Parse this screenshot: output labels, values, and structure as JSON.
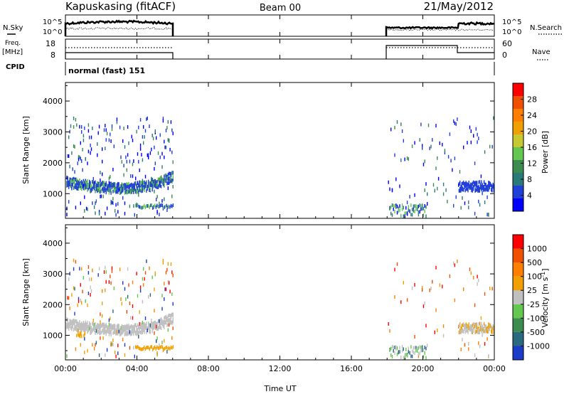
{
  "header": {
    "station": "Kapuskasing (fitACF)",
    "beam": "Beam 00",
    "date": "21/May/2012"
  },
  "labels": {
    "nsky": "N.Sky",
    "freq": "Freq.",
    "freq_unit": "[MHz]",
    "cpid": "CPID",
    "nsearch": "N.Search",
    "nave": "Nave",
    "cpid_value": "normal (fast) 151"
  },
  "colors": {
    "power_scale": [
      "#0000ff",
      "#2040d8",
      "#2a7a7a",
      "#3c8c50",
      "#64c850",
      "#c8c832",
      "#f0a000",
      "#ff8000",
      "#f05000",
      "#ff0000"
    ],
    "velocity_scale": [
      "#1a3cc8",
      "#2a6a80",
      "#3c8c50",
      "#64c850",
      "#c0c0c0",
      "#f0a000",
      "#ff8000",
      "#f05000",
      "#ff0000"
    ],
    "gray_band": "#c0c0c0"
  },
  "chart_data": [
    {
      "type": "line",
      "name_label": "N.Sky / N.Search",
      "ylabel_left": [
        "10^5",
        "10^0"
      ],
      "ylabel_right": [
        "10^5",
        "10^0"
      ],
      "active_periods": [
        [
          "00:00",
          "06:00"
        ],
        [
          "18:00",
          "24:00"
        ]
      ]
    },
    {
      "type": "line",
      "name_label": "Freq. / Nave",
      "ylabel_left": [
        "18",
        "8"
      ],
      "ylabel_right": [
        "60",
        "0"
      ]
    },
    {
      "type": "heatmap",
      "ylabel": "Slant Range [km]",
      "yticks": [
        "1000",
        "2000",
        "3000",
        "4000"
      ],
      "ylim": [
        200,
        4600
      ],
      "colorbar_label": "Power [dB]",
      "colorbar_ticks": [
        "4",
        "8",
        "12",
        "16",
        "20",
        "24",
        "28"
      ],
      "data_periods": [
        [
          "00:00",
          "06:00"
        ],
        [
          "18:00",
          "24:00"
        ]
      ]
    },
    {
      "type": "heatmap",
      "ylabel": "Slant Range [km]",
      "yticks": [
        "1000",
        "2000",
        "3000",
        "4000"
      ],
      "ylim": [
        200,
        4600
      ],
      "colorbar_label": "Velocity [m s",
      "colorbar_unit_sup": "-1",
      "colorbar_unit_close": "]",
      "colorbar_ticks": [
        "1000",
        "500",
        "100",
        "25",
        "-25",
        "-100",
        "-500",
        "-1000"
      ],
      "xticks": [
        "00:00",
        "04:00",
        "08:00",
        "12:00",
        "16:00",
        "20:00",
        "00:00"
      ],
      "xlabel": "Time UT"
    }
  ]
}
